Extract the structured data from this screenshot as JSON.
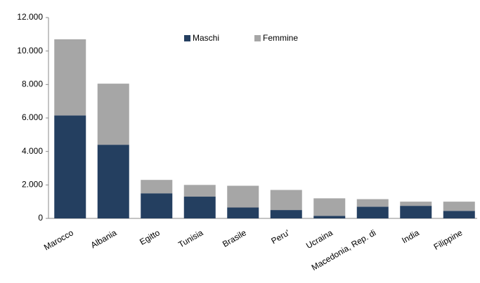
{
  "chart_data": {
    "type": "stacked_bar",
    "categories": [
      "Marocco",
      "Albania",
      "Egitto",
      "Tunisia",
      "Brasile",
      "Peru'",
      "Ucraina",
      "Macedonia, Rep. di",
      "India",
      "Filippine"
    ],
    "series": [
      {
        "name": "Maschi",
        "color": "#243f60",
        "values": [
          6150,
          4400,
          1500,
          1300,
          650,
          500,
          150,
          700,
          750,
          450
        ]
      },
      {
        "name": "Femmine",
        "color": "#a6a6a6",
        "values": [
          4550,
          3650,
          800,
          700,
          1300,
          1200,
          1050,
          450,
          250,
          550
        ]
      }
    ],
    "ylim": [
      0,
      12000
    ],
    "yticks": [
      0,
      {
        "value": 2000,
        "label": "2.000"
      },
      {
        "value": 4000,
        "label": "4.000"
      },
      {
        "value": 6000,
        "label": "6.000"
      },
      {
        "value": 8000,
        "label": "8.000"
      },
      {
        "value": 10000,
        "label": "10.000"
      },
      {
        "value": 12000,
        "label": "12.000"
      }
    ],
    "legend": "top"
  }
}
